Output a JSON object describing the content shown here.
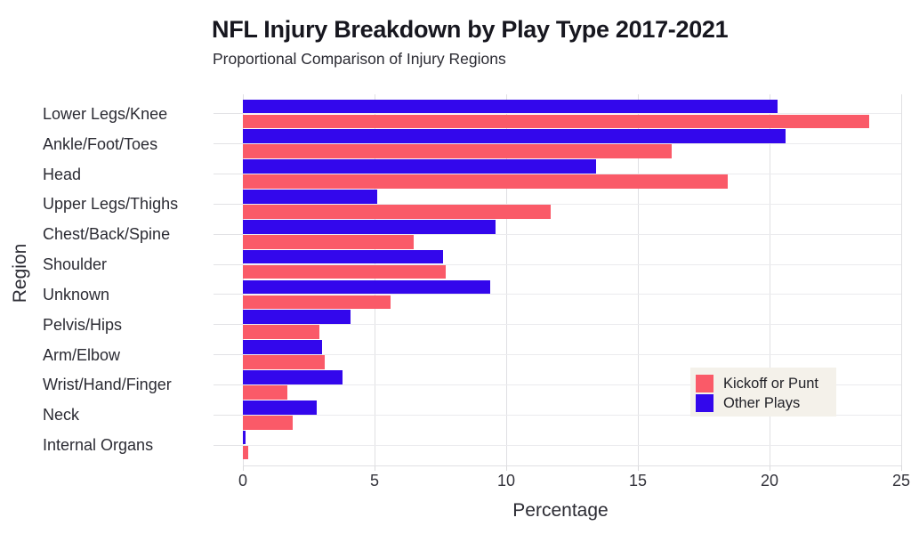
{
  "header": {
    "title": "NFL Injury Breakdown by Play Type 2017-2021",
    "subtitle": "Proportional Comparison of Injury Regions"
  },
  "chart_data": {
    "type": "bar",
    "orientation": "horizontal",
    "title": "NFL Injury Breakdown by Play Type 2017-2021",
    "subtitle": "Proportional Comparison of Injury Regions",
    "xlabel": "Percentage",
    "ylabel": "Region",
    "xlim": [
      0,
      25
    ],
    "xticks": [
      0,
      5,
      10,
      15,
      20,
      25
    ],
    "grid": true,
    "legend_position": "right-middle",
    "legend_bg": "#f4f1ea",
    "categories": [
      "Lower Legs/Knee",
      "Ankle/Foot/Toes",
      "Head",
      "Upper Legs/Thighs",
      "Chest/Back/Spine",
      "Shoulder",
      "Unknown",
      "Pelvis/Hips",
      "Arm/Elbow",
      "Wrist/Hand/Finger",
      "Neck",
      "Internal Organs"
    ],
    "series": [
      {
        "name": "Kickoff or Punt",
        "color": "#fa5a68",
        "values": [
          23.8,
          16.3,
          18.4,
          11.7,
          6.5,
          7.7,
          5.6,
          2.9,
          3.1,
          1.7,
          1.9,
          0.2
        ]
      },
      {
        "name": "Other Plays",
        "color": "#3307ec",
        "values": [
          20.3,
          20.6,
          13.4,
          5.1,
          9.6,
          7.6,
          9.4,
          4.1,
          3.0,
          3.8,
          2.8,
          0.1
        ]
      }
    ]
  }
}
